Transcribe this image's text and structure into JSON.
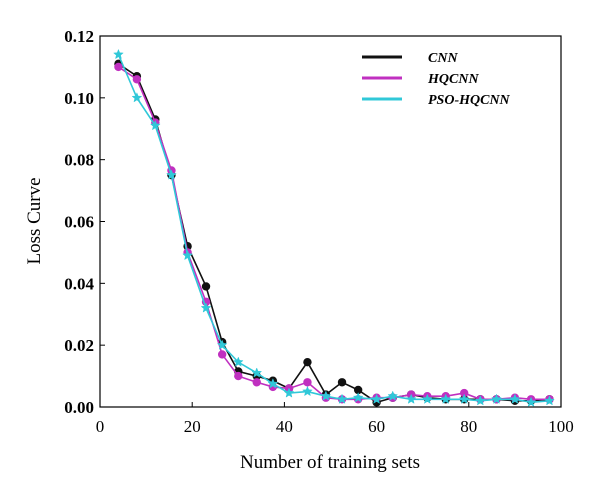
{
  "chart_data": {
    "type": "line",
    "title": "",
    "xlabel": "Number of training sets",
    "ylabel": "Loss Curve",
    "xlim": [
      0,
      100
    ],
    "ylim": [
      0,
      0.12
    ],
    "xticks": [
      0,
      20,
      40,
      60,
      80,
      100
    ],
    "xtick_labels": [
      "0",
      "20",
      "40",
      "60",
      "80",
      "100"
    ],
    "yticks": [
      0,
      0.02,
      0.04,
      0.06,
      0.08,
      0.1,
      0.12
    ],
    "ytick_labels": [
      "0.00",
      "0.02",
      "0.04",
      "0.06",
      "0.08",
      "0.10",
      "0.12"
    ],
    "grid": false,
    "legend_position": "top-right",
    "series": [
      {
        "name": "CNN",
        "color": "#111111",
        "marker": "circle",
        "x": [
          4,
          8,
          12,
          15.5,
          19,
          23,
          26.5,
          30,
          34,
          37.5,
          41,
          45,
          49,
          52.5,
          56,
          60,
          63.5,
          67.5,
          71,
          75,
          79,
          82.5,
          86,
          90,
          93.5,
          97.5
        ],
        "y": [
          0.111,
          0.107,
          0.093,
          0.075,
          0.052,
          0.039,
          0.021,
          0.0115,
          0.01,
          0.0085,
          0.006,
          0.0145,
          0.004,
          0.008,
          0.0055,
          0.0015,
          0.003,
          0.004,
          0.003,
          0.0025,
          0.0025,
          0.0025,
          0.0025,
          0.002,
          0.002,
          0.0025
        ]
      },
      {
        "name": "HQCNN",
        "color": "#c030c0",
        "marker": "circle",
        "x": [
          4,
          8,
          12,
          15.5,
          19,
          23,
          26.5,
          30,
          34,
          37.5,
          41,
          45,
          49,
          52.5,
          56,
          60,
          63.5,
          67.5,
          71,
          75,
          79,
          82.5,
          86,
          90,
          93.5,
          97.5
        ],
        "y": [
          0.11,
          0.106,
          0.092,
          0.0765,
          0.05,
          0.034,
          0.017,
          0.01,
          0.008,
          0.0065,
          0.006,
          0.008,
          0.003,
          0.0025,
          0.0025,
          0.003,
          0.003,
          0.004,
          0.0035,
          0.0035,
          0.0045,
          0.0025,
          0.0025,
          0.003,
          0.0025,
          0.0025
        ]
      },
      {
        "name": "PSO-HQCNN",
        "color": "#30c8d8",
        "marker": "star",
        "x": [
          4,
          8,
          12,
          15.5,
          19,
          23,
          26.5,
          30,
          34,
          37.5,
          41,
          45,
          49,
          52.5,
          56,
          60,
          63.5,
          67.5,
          71,
          75,
          79,
          82.5,
          86,
          90,
          93.5,
          97.5
        ],
        "y": [
          0.114,
          0.1,
          0.091,
          0.075,
          0.049,
          0.032,
          0.02,
          0.0145,
          0.011,
          0.0075,
          0.0045,
          0.005,
          0.0035,
          0.0025,
          0.003,
          0.0025,
          0.0035,
          0.0025,
          0.0025,
          0.0025,
          0.0025,
          0.002,
          0.0025,
          0.0025,
          0.0015,
          0.002
        ]
      }
    ]
  }
}
